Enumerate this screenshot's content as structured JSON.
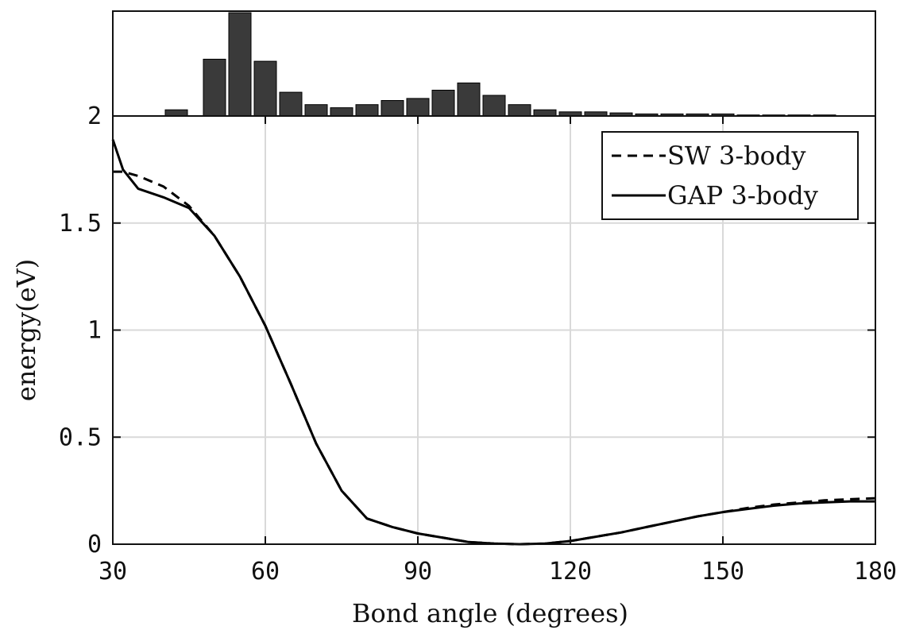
{
  "chart_data": [
    {
      "type": "bar",
      "role": "histogram",
      "x": [
        42.5,
        50,
        55,
        60,
        65,
        70,
        75,
        80,
        85,
        90,
        95,
        100,
        105,
        110,
        115,
        120,
        125,
        130,
        135,
        140,
        145,
        150,
        155,
        160,
        165,
        170
      ],
      "values": [
        0.06,
        0.55,
        1.0,
        0.53,
        0.23,
        0.11,
        0.08,
        0.11,
        0.15,
        0.17,
        0.25,
        0.32,
        0.2,
        0.11,
        0.06,
        0.04,
        0.04,
        0.03,
        0.02,
        0.02,
        0.02,
        0.02,
        0.01,
        0.01,
        0.01,
        0.01
      ],
      "xlim": [
        30,
        180
      ],
      "ylim": [
        0,
        1
      ],
      "color": "#3a3a3a"
    },
    {
      "type": "line",
      "title": "",
      "xlabel": "Bond angle (degrees)",
      "ylabel": "energy(eV)",
      "xlim": [
        30,
        180
      ],
      "ylim": [
        0,
        2
      ],
      "xticks": [
        "30",
        "60",
        "90",
        "120",
        "150",
        "180"
      ],
      "yticks": [
        "0",
        "0.5",
        "1",
        "1.5",
        "2"
      ],
      "grid": true,
      "legend_position": "top-right",
      "series": [
        {
          "name": "SW 3-body",
          "style": "dashed",
          "x": [
            30,
            32,
            35,
            40,
            45,
            50,
            55,
            60,
            65,
            70,
            75,
            80,
            85,
            90,
            95,
            100,
            105,
            110,
            115,
            120,
            125,
            130,
            135,
            140,
            145,
            150,
            155,
            160,
            165,
            170,
            175,
            180
          ],
          "y": [
            1.74,
            1.74,
            1.72,
            1.67,
            1.58,
            1.44,
            1.25,
            1.02,
            0.75,
            0.47,
            0.25,
            0.12,
            0.08,
            0.05,
            0.03,
            0.01,
            0.003,
            0.0,
            0.003,
            0.015,
            0.035,
            0.055,
            0.08,
            0.105,
            0.13,
            0.15,
            0.17,
            0.185,
            0.195,
            0.205,
            0.21,
            0.215
          ]
        },
        {
          "name": "GAP 3-body",
          "style": "solid",
          "x": [
            30,
            32,
            35,
            40,
            45,
            50,
            55,
            60,
            65,
            70,
            75,
            80,
            85,
            90,
            95,
            100,
            105,
            110,
            115,
            120,
            125,
            130,
            135,
            140,
            145,
            150,
            155,
            160,
            165,
            170,
            175,
            180
          ],
          "y": [
            1.89,
            1.75,
            1.66,
            1.62,
            1.57,
            1.44,
            1.25,
            1.02,
            0.75,
            0.47,
            0.25,
            0.12,
            0.08,
            0.05,
            0.03,
            0.01,
            0.003,
            0.0,
            0.003,
            0.015,
            0.035,
            0.055,
            0.08,
            0.105,
            0.13,
            0.15,
            0.165,
            0.18,
            0.19,
            0.195,
            0.2,
            0.2
          ]
        }
      ]
    }
  ]
}
